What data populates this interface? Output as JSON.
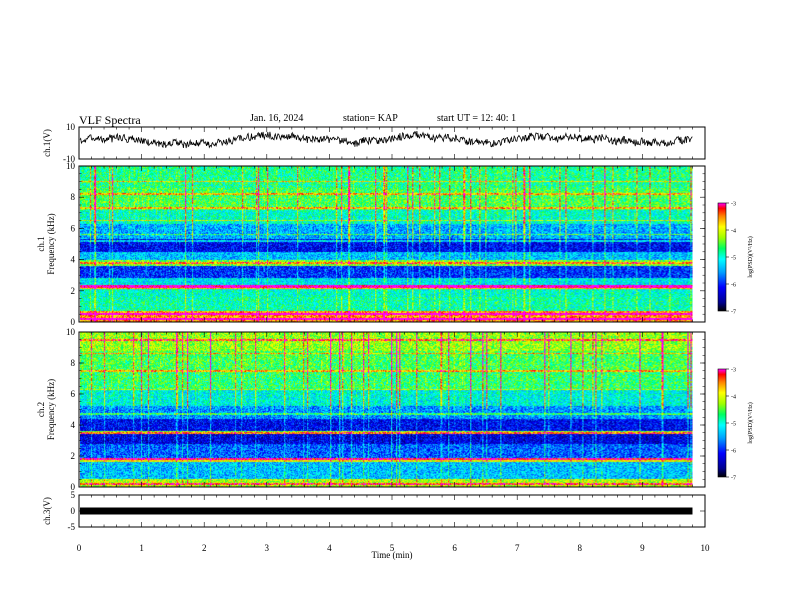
{
  "header": {
    "title": "VLF Spectra",
    "date": "Jan. 16, 2024",
    "station": "station= KAP",
    "start": "start  UT =   12: 40: 1"
  },
  "chart_data": [
    {
      "type": "line",
      "panel": "ch1-waveform",
      "ylabel": "ch.1(V)",
      "ylim": [
        -10,
        10
      ],
      "yticks": [
        "10",
        "-10"
      ],
      "xlim": [
        0,
        10
      ],
      "x_end": 9.8,
      "approx_mean": 2,
      "approx_range": [
        -6,
        9
      ]
    },
    {
      "type": "heatmap",
      "panel": "ch1-spectrogram",
      "ylabel": "ch.1\nFrequency (kHz)",
      "ylim": [
        0,
        10
      ],
      "yticks": [
        "0",
        "2",
        "4",
        "6",
        "8",
        "10"
      ],
      "xlim": [
        0,
        10
      ],
      "x_end": 9.8,
      "colorbar": {
        "label": "log(PSD)(V²/Hz)",
        "range": [
          -7,
          -3
        ],
        "ticks": [
          "-3",
          "-4",
          "-5",
          "-6",
          "-7"
        ]
      },
      "bands": [
        {
          "fmin": 0.0,
          "fmax": 0.7,
          "level": -3.6
        },
        {
          "fmin": 0.7,
          "fmax": 1.6,
          "level": -4.9
        },
        {
          "fmin": 1.6,
          "fmax": 2.1,
          "level": -5.0
        },
        {
          "fmin": 2.1,
          "fmax": 2.4,
          "level": -3.8
        },
        {
          "fmin": 2.4,
          "fmax": 2.8,
          "level": -5.2
        },
        {
          "fmin": 2.8,
          "fmax": 3.6,
          "level": -6.0
        },
        {
          "fmin": 3.6,
          "fmax": 4.0,
          "level": -4.4
        },
        {
          "fmin": 4.0,
          "fmax": 4.5,
          "level": -5.4
        },
        {
          "fmin": 4.5,
          "fmax": 5.3,
          "level": -6.2
        },
        {
          "fmin": 5.3,
          "fmax": 6.3,
          "level": -5.5
        },
        {
          "fmin": 6.3,
          "fmax": 7.2,
          "level": -5.0
        },
        {
          "fmin": 7.2,
          "fmax": 8.6,
          "level": -4.6
        },
        {
          "fmin": 8.6,
          "fmax": 10.0,
          "level": -4.8
        }
      ],
      "lines_khz": [
        0.2,
        0.5,
        2.2,
        2.3,
        3.8,
        5.2,
        5.6,
        6.5,
        7.3,
        8.2,
        9.0
      ]
    },
    {
      "type": "heatmap",
      "panel": "ch2-spectrogram",
      "ylabel": "ch.2\nFrequency (kHz)",
      "ylim": [
        0,
        10
      ],
      "yticks": [
        "0",
        "2",
        "4",
        "6",
        "8",
        "10"
      ],
      "xlim": [
        0,
        10
      ],
      "x_end": 9.8,
      "colorbar": {
        "label": "log(PSD)(V²/Hz)",
        "range": [
          -7,
          -3
        ],
        "ticks": [
          "-3",
          "-4",
          "-5",
          "-6",
          "-7"
        ]
      },
      "bands": [
        {
          "fmin": 0.0,
          "fmax": 0.5,
          "level": -4.2
        },
        {
          "fmin": 0.5,
          "fmax": 1.6,
          "level": -5.4
        },
        {
          "fmin": 1.6,
          "fmax": 1.9,
          "level": -4.0
        },
        {
          "fmin": 1.9,
          "fmax": 2.8,
          "level": -5.8
        },
        {
          "fmin": 2.8,
          "fmax": 3.4,
          "level": -6.3
        },
        {
          "fmin": 3.4,
          "fmax": 3.6,
          "level": -4.4
        },
        {
          "fmin": 3.6,
          "fmax": 4.4,
          "level": -6.2
        },
        {
          "fmin": 4.4,
          "fmax": 5.2,
          "level": -5.6
        },
        {
          "fmin": 5.2,
          "fmax": 6.3,
          "level": -5.1
        },
        {
          "fmin": 6.3,
          "fmax": 7.4,
          "level": -4.7
        },
        {
          "fmin": 7.4,
          "fmax": 8.8,
          "level": -4.6
        },
        {
          "fmin": 8.8,
          "fmax": 10.0,
          "level": -4.3
        }
      ],
      "lines_khz": [
        0.2,
        1.8,
        3.5,
        4.7,
        6.3,
        7.5,
        8.6,
        9.5
      ]
    },
    {
      "type": "line",
      "panel": "ch3-signal",
      "ylabel": "ch.3(V)",
      "ylim": [
        -5,
        5
      ],
      "yticks": [
        "5",
        "0",
        "-5"
      ],
      "xlim": [
        0,
        10
      ],
      "x_end": 9.8,
      "value": 0,
      "xlabel": "Time  (min)",
      "xticks": [
        "0",
        "1",
        "2",
        "3",
        "4",
        "5",
        "6",
        "7",
        "8",
        "9",
        "10"
      ]
    }
  ]
}
